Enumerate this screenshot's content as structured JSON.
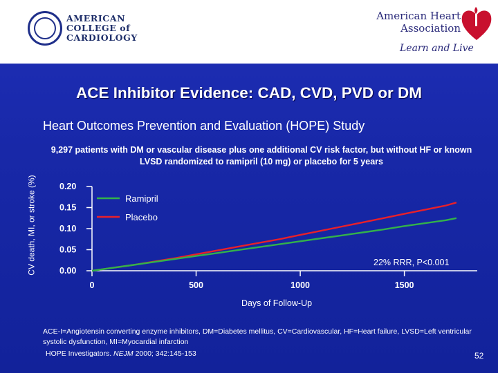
{
  "header": {
    "acc_name": "AMERICAN\nCOLLEGE of\nCARDIOLOGY",
    "aha_name": "American Heart\nAssociation",
    "aha_tagline": "Learn and Live",
    "colors": {
      "band": "#ffffff",
      "heart": "#c8102e"
    }
  },
  "slide": {
    "title": "ACE Inhibitor Evidence: CAD, CVD, PVD or DM",
    "subtitle": "Heart Outcomes Prevention and Evaluation (HOPE) Study",
    "description": "9,297 patients with DM or vascular disease plus one additional CV risk factor, but without HF or known LVSD randomized to ramipril (10 mg) or placebo for 5 years",
    "footnote": "ACE-I=Angiotensin converting enzyme inhibitors, DM=Diabetes mellitus, CV=Cardiovascular, HF=Heart failure, LVSD=Left ventricular systolic dysfunction, MI=Myocardial infarction",
    "citation_prefix": "HOPE Investigators.",
    "citation_journal": "NEJM",
    "citation_rest": "2000; 342:145-153",
    "page_number": "52"
  },
  "chart_data": {
    "type": "line",
    "ylabel": "CV death, MI, or stroke (%)",
    "xlabel": "Days of Follow-Up",
    "xlim": [
      0,
      1850
    ],
    "ylim": [
      0,
      0.2
    ],
    "xticks": [
      0,
      500,
      1000,
      1500
    ],
    "xtick_labels": [
      "0",
      "500",
      "1000",
      "1500"
    ],
    "yticks": [
      0,
      0.05,
      0.1,
      0.15,
      0.2
    ],
    "ytick_labels": [
      "0.00",
      "0.05",
      "0.10",
      "0.15",
      "0.20"
    ],
    "legend_position": "top-left",
    "annotation": "22% RRR, P<0.001",
    "x": [
      0,
      100,
      200,
      300,
      400,
      500,
      600,
      700,
      800,
      900,
      1000,
      1100,
      1200,
      1300,
      1400,
      1500,
      1600,
      1700,
      1750
    ],
    "series": [
      {
        "name": "Ramipril",
        "color": "#33b24a",
        "values": [
          0,
          0.007,
          0.014,
          0.021,
          0.028,
          0.035,
          0.042,
          0.049,
          0.056,
          0.063,
          0.07,
          0.077,
          0.084,
          0.091,
          0.098,
          0.106,
          0.113,
          0.12,
          0.125
        ]
      },
      {
        "name": "Placebo",
        "color": "#e8202a",
        "values": [
          0,
          0.007,
          0.014,
          0.022,
          0.03,
          0.039,
          0.048,
          0.057,
          0.066,
          0.075,
          0.085,
          0.095,
          0.105,
          0.115,
          0.125,
          0.135,
          0.145,
          0.155,
          0.162
        ]
      }
    ]
  }
}
